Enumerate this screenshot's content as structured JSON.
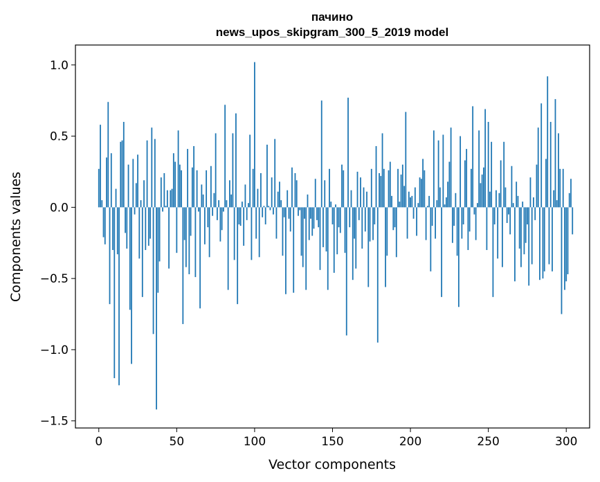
{
  "chart_data": {
    "type": "bar",
    "title_line1": "пачино",
    "title_line2": "news_upos_skipgram_300_5_2019 model",
    "xlabel": "Vector components",
    "ylabel": "Components values",
    "xlim": [
      -15,
      315
    ],
    "ylim": [
      -1.55,
      1.14
    ],
    "xticks": [
      0,
      50,
      100,
      150,
      200,
      250,
      300
    ],
    "xtick_labels": [
      "0",
      "50",
      "100",
      "150",
      "200",
      "250",
      "300"
    ],
    "yticks": [
      -1.5,
      -1.0,
      -0.5,
      0.0,
      0.5,
      1.0
    ],
    "ytick_labels": [
      "−1.5",
      "−1.0",
      "−0.5",
      "0.0",
      "0.5",
      "1.0"
    ],
    "bar_color": "#1f77b4",
    "values": [
      0.27,
      0.58,
      0.05,
      -0.21,
      -0.26,
      0.35,
      0.74,
      -0.68,
      0.38,
      -0.3,
      -1.2,
      0.13,
      -0.33,
      -1.25,
      0.46,
      0.47,
      0.6,
      -0.18,
      -0.29,
      0.3,
      -0.72,
      -1.1,
      0.34,
      -0.05,
      0.17,
      0.37,
      -0.36,
      0.05,
      -0.63,
      0.19,
      -0.3,
      0.47,
      -0.27,
      -0.22,
      0.56,
      -0.89,
      0.48,
      -1.42,
      -0.6,
      -0.38,
      0.21,
      -0.03,
      0.24,
      0.01,
      0.12,
      -0.43,
      0.12,
      0.13,
      0.38,
      0.32,
      -0.32,
      0.54,
      0.3,
      0.26,
      -0.82,
      -0.23,
      -0.42,
      0.41,
      -0.47,
      -0.2,
      0.28,
      0.43,
      -0.49,
      0.26,
      -0.03,
      -0.71,
      0.16,
      0.09,
      -0.26,
      0.26,
      -0.14,
      -0.35,
      0.29,
      -0.06,
      0.1,
      0.52,
      -0.09,
      0.05,
      -0.24,
      -0.16,
      -0.03,
      0.72,
      0.05,
      -0.58,
      0.19,
      0.09,
      0.52,
      -0.37,
      0.66,
      -0.68,
      -0.12,
      -0.13,
      0.04,
      -0.27,
      0.16,
      -0.09,
      0.03,
      0.51,
      -0.37,
      0.27,
      1.02,
      -0.22,
      0.13,
      -0.35,
      0.24,
      -0.07,
      0.01,
      -0.12,
      0.44,
      0.01,
      -0.02,
      0.21,
      -0.05,
      0.48,
      -0.22,
      0.11,
      0.18,
      0.05,
      -0.34,
      -0.07,
      -0.61,
      0.12,
      -0.08,
      -0.17,
      0.28,
      -0.6,
      0.24,
      0.19,
      -0.06,
      -0.02,
      -0.34,
      -0.42,
      -0.08,
      -0.58,
      0.09,
      -0.23,
      -0.08,
      -0.2,
      -0.15,
      0.2,
      -0.09,
      -0.14,
      -0.44,
      0.75,
      -0.28,
      0.19,
      -0.31,
      -0.58,
      0.27,
      0.04,
      -0.12,
      -0.46,
      0.02,
      -0.33,
      -0.14,
      -0.18,
      0.3,
      0.26,
      -0.32,
      -0.9,
      0.77,
      -0.14,
      0.12,
      -0.51,
      -0.22,
      -0.43,
      0.25,
      -0.09,
      0.21,
      -0.29,
      0.14,
      -0.17,
      0.11,
      -0.56,
      -0.24,
      0.27,
      -0.23,
      -0.12,
      0.43,
      -0.95,
      0.24,
      0.22,
      0.52,
      0.27,
      -0.56,
      -0.34,
      0.26,
      0.32,
      0.08,
      -0.16,
      -0.14,
      -0.35,
      0.27,
      0.04,
      0.23,
      0.3,
      0.15,
      0.67,
      -0.22,
      0.11,
      0.07,
      0.08,
      -0.08,
      0.14,
      -0.2,
      0.03,
      0.21,
      0.2,
      0.34,
      0.26,
      -0.23,
      0.01,
      0.08,
      -0.45,
      -0.13,
      0.54,
      -0.22,
      0.05,
      0.47,
      0.14,
      -0.63,
      0.51,
      0.02,
      0.07,
      0.18,
      0.32,
      0.56,
      -0.25,
      -0.13,
      0.1,
      -0.34,
      -0.7,
      0.5,
      -0.22,
      -0.12,
      0.33,
      0.41,
      -0.3,
      -0.17,
      0.27,
      0.71,
      -0.05,
      -0.23,
      0.03,
      0.54,
      0.17,
      0.23,
      0.28,
      0.69,
      -0.3,
      0.6,
      0.11,
      0.46,
      -0.63,
      -0.12,
      0.12,
      -0.36,
      0.1,
      0.33,
      -0.42,
      0.46,
      0.14,
      -0.11,
      -0.05,
      -0.19,
      0.29,
      0.03,
      -0.52,
      0.18,
      0.08,
      -0.29,
      -0.42,
      0.04,
      -0.33,
      -0.25,
      -0.12,
      -0.55,
      0.21,
      -0.4,
      0.07,
      -0.09,
      0.3,
      0.56,
      -0.51,
      0.73,
      -0.5,
      -0.45,
      0.34,
      0.92,
      -0.4,
      0.6,
      -0.45,
      0.12,
      0.76,
      0.05,
      0.52,
      0.27,
      -0.75,
      0.27,
      -0.58,
      -0.52,
      -0.47,
      0.1,
      0.2,
      -0.19
    ]
  }
}
